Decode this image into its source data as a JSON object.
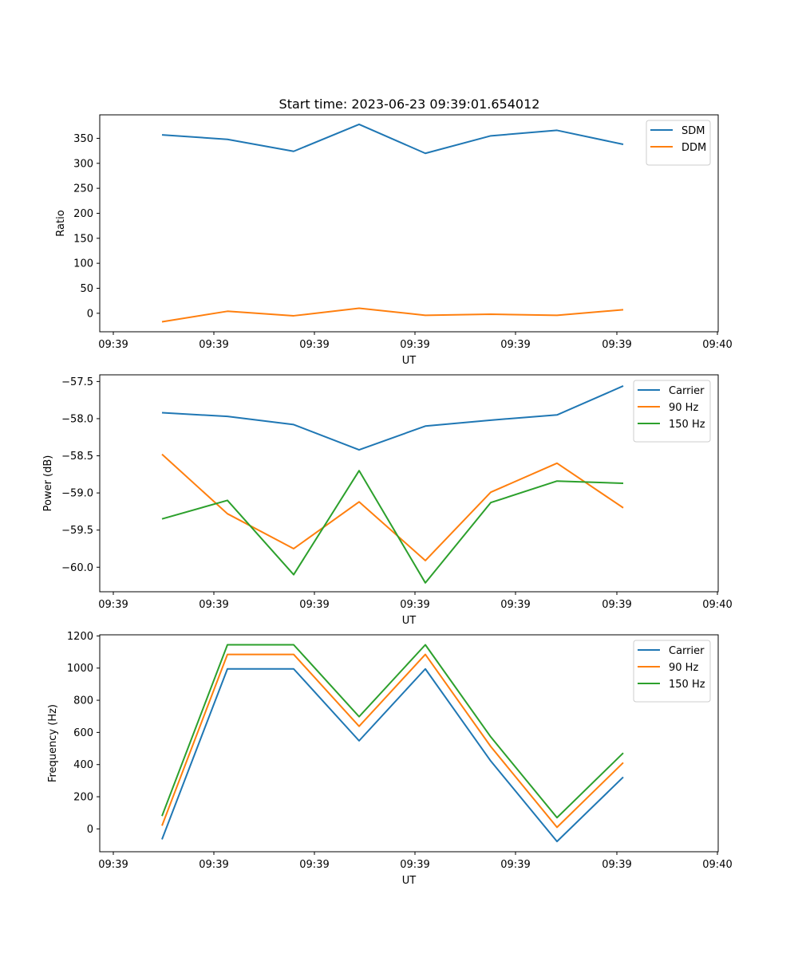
{
  "figure_title": "Start time: 2023-06-23 09:39:01.654012",
  "colors": {
    "blue": "#1f77b4",
    "orange": "#ff7f0e",
    "green": "#2ca02c"
  },
  "chart_data": [
    {
      "type": "line",
      "xlabel": "UT",
      "ylabel": "Ratio",
      "x_tick_labels": [
        "09:39",
        "09:39",
        "09:39",
        "09:39",
        "09:39",
        "09:39",
        "09:39",
        "09:40"
      ],
      "y_ticks": [
        0,
        50,
        100,
        150,
        200,
        250,
        300,
        350
      ],
      "y_tick_labels": [
        "0",
        "50",
        "100",
        "150",
        "200",
        "250",
        "300",
        "350"
      ],
      "ylim": [
        -37,
        397
      ],
      "legend_position": "upper right",
      "series": [
        {
          "name": "SDM",
          "color": "#1f77b4",
          "values": [
            357,
            348,
            324,
            378,
            320,
            355,
            366,
            338
          ]
        },
        {
          "name": "DDM",
          "color": "#ff7f0e",
          "values": [
            -17,
            4,
            -5,
            10,
            -4,
            -2,
            -4,
            7
          ]
        }
      ]
    },
    {
      "type": "line",
      "xlabel": "UT",
      "ylabel": "Power (dB)",
      "x_tick_labels": [
        "09:39",
        "09:39",
        "09:39",
        "09:39",
        "09:39",
        "09:39",
        "09:39",
        "09:40"
      ],
      "y_ticks": [
        -60.0,
        -59.5,
        -59.0,
        -58.5,
        -58.0,
        -57.5
      ],
      "y_tick_labels": [
        "−60.0",
        "−59.5",
        "−59.0",
        "−58.5",
        "−58.0",
        "−57.5"
      ],
      "ylim": [
        -60.33,
        -57.41
      ],
      "legend_position": "upper right",
      "series": [
        {
          "name": "Carrier",
          "color": "#1f77b4",
          "values": [
            -57.92,
            -57.97,
            -58.08,
            -58.42,
            -58.1,
            -58.02,
            -57.95,
            -57.56
          ]
        },
        {
          "name": "90 Hz",
          "color": "#ff7f0e",
          "values": [
            -58.48,
            -59.28,
            -59.75,
            -59.12,
            -59.91,
            -58.99,
            -58.6,
            -59.2
          ]
        },
        {
          "name": "150 Hz",
          "color": "#2ca02c",
          "values": [
            -59.35,
            -59.1,
            -60.1,
            -58.7,
            -60.21,
            -59.13,
            -58.84,
            -58.87
          ]
        }
      ]
    },
    {
      "type": "line",
      "xlabel": "UT",
      "ylabel": "Frequency (Hz)",
      "x_tick_labels": [
        "09:39",
        "09:39",
        "09:39",
        "09:39",
        "09:39",
        "09:39",
        "09:39",
        "09:40"
      ],
      "y_ticks": [
        0,
        200,
        400,
        600,
        800,
        1000,
        1200
      ],
      "y_tick_labels": [
        "0",
        "200",
        "400",
        "600",
        "800",
        "1000",
        "1200"
      ],
      "ylim": [
        -142,
        1207
      ],
      "legend_position": "upper right",
      "series": [
        {
          "name": "Carrier",
          "color": "#1f77b4",
          "values": [
            -65,
            995,
            995,
            548,
            995,
            422,
            -78,
            322
          ]
        },
        {
          "name": "90 Hz",
          "color": "#ff7f0e",
          "values": [
            20,
            1085,
            1085,
            638,
            1085,
            512,
            10,
            412
          ]
        },
        {
          "name": "150 Hz",
          "color": "#2ca02c",
          "values": [
            80,
            1145,
            1145,
            698,
            1145,
            572,
            70,
            472
          ]
        }
      ]
    }
  ]
}
